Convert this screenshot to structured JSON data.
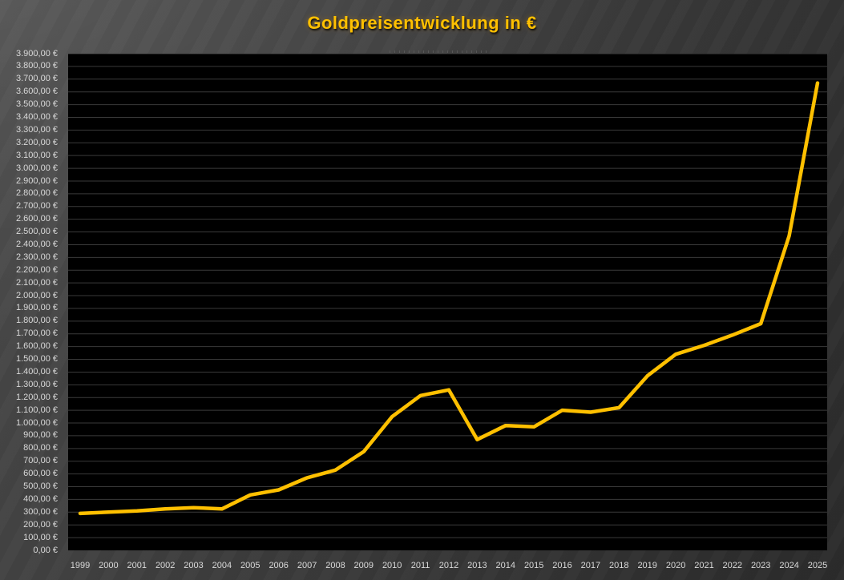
{
  "title": "Goldpreisentwicklung in €",
  "colors": {
    "accent_line": "#FFC000",
    "title_text": "#FFC000",
    "axis_label_text": "#D9D9D9",
    "plot_background": "#000000",
    "gridline": "#3A3A3A",
    "slide_background_light": "#4B4B4B",
    "slide_background_dark": "#2B2B2B"
  },
  "chart_data": {
    "type": "line",
    "title": "Goldpreisentwicklung in €",
    "categories": [
      "1999",
      "2000",
      "2001",
      "2002",
      "2003",
      "2004",
      "2005",
      "2006",
      "2007",
      "2008",
      "2009",
      "2010",
      "2011",
      "2012",
      "2013",
      "2014",
      "2015",
      "2016",
      "2017",
      "2018",
      "2019",
      "2020",
      "2021",
      "2022",
      "2023",
      "2024",
      "2025"
    ],
    "values": [
      290,
      300,
      310,
      325,
      335,
      325,
      435,
      475,
      570,
      630,
      775,
      1050,
      1215,
      1260,
      870,
      980,
      970,
      1100,
      1085,
      1120,
      1370,
      1540,
      1610,
      1690,
      1780,
      2470,
      3670
    ],
    "ylim": [
      0,
      3900
    ],
    "y_tick_step": 100,
    "y_tick_labels": [
      "0,00 €",
      "100,00 €",
      "200,00 €",
      "300,00 €",
      "400,00 €",
      "500,00 €",
      "600,00 €",
      "700,00 €",
      "800,00 €",
      "900,00 €",
      "1.000,00 €",
      "1.100,00 €",
      "1.200,00 €",
      "1.300,00 €",
      "1.400,00 €",
      "1.500,00 €",
      "1.600,00 €",
      "1.700,00 €",
      "1.800,00 €",
      "1.900,00 €",
      "2.000,00 €",
      "2.100,00 €",
      "2.200,00 €",
      "2.300,00 €",
      "2.400,00 €",
      "2.500,00 €",
      "2.600,00 €",
      "2.700,00 €",
      "2.800,00 €",
      "2.900,00 €",
      "3.000,00 €",
      "3.100,00 €",
      "3.200,00 €",
      "3.300,00 €",
      "3.400,00 €",
      "3.500,00 €",
      "3.600,00 €",
      "3.700,00 €",
      "3.800,00 €",
      "3.900,00 €"
    ],
    "grid": true,
    "legend_position": "none",
    "xlabel": "",
    "ylabel": ""
  }
}
